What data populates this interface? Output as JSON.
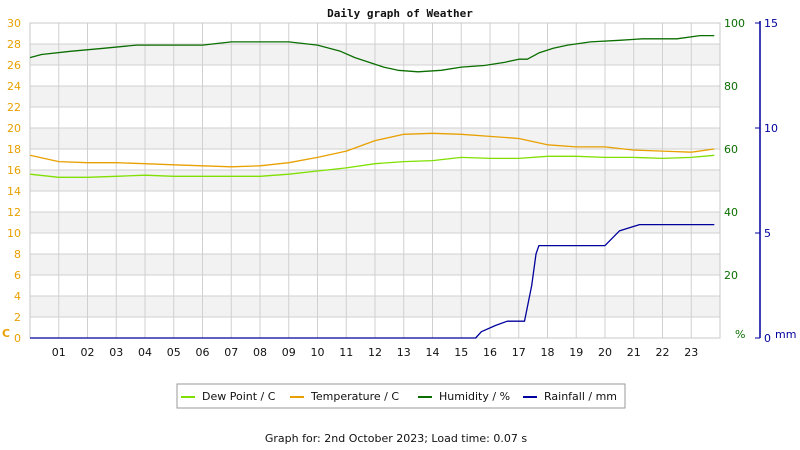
{
  "chart_data": {
    "type": "line",
    "title": "Daily graph of Weather",
    "footer": "Graph for: 2nd October 2023; Load time: 0.07 s",
    "colors": {
      "temperature_axis": "#e8a000",
      "humidity_axis": "#0a6e00",
      "rainfall_axis": "#00009c",
      "band": "#f2f2f2",
      "grid": "#d0d0d0"
    },
    "axes": {
      "x": {
        "ticks": [
          "01",
          "02",
          "03",
          "04",
          "05",
          "06",
          "07",
          "08",
          "09",
          "10",
          "11",
          "12",
          "13",
          "14",
          "15",
          "16",
          "17",
          "18",
          "19",
          "20",
          "21",
          "22",
          "23"
        ],
        "range": [
          0,
          24
        ]
      },
      "temperature": {
        "unit": "C",
        "ylim": [
          0,
          30
        ],
        "ticks": [
          0,
          2,
          4,
          6,
          8,
          10,
          12,
          14,
          16,
          18,
          20,
          22,
          24,
          26,
          28,
          30
        ]
      },
      "humidity": {
        "unit": "%",
        "ylim": [
          0,
          100
        ],
        "ticks": [
          0,
          20,
          40,
          60,
          80,
          100
        ]
      },
      "rainfall": {
        "unit": "mm",
        "ylim": [
          0,
          15
        ],
        "ticks": [
          0,
          5,
          10,
          15
        ]
      }
    },
    "series": [
      {
        "name": "Dew Point / C",
        "axis": "temperature",
        "color": "#7fe000",
        "x": [
          0,
          1,
          2,
          3,
          4,
          5,
          6,
          7,
          8,
          9,
          10,
          11,
          12,
          13,
          14,
          15,
          16,
          17,
          18,
          19,
          20,
          21,
          22,
          23,
          23.8
        ],
        "y": [
          15.6,
          15.3,
          15.3,
          15.4,
          15.5,
          15.4,
          15.4,
          15.4,
          15.4,
          15.6,
          15.9,
          16.2,
          16.6,
          16.8,
          16.9,
          17.2,
          17.1,
          17.1,
          17.3,
          17.3,
          17.2,
          17.2,
          17.1,
          17.2,
          17.4
        ]
      },
      {
        "name": "Temperature / C",
        "axis": "temperature",
        "color": "#e8a000",
        "x": [
          0,
          1,
          2,
          3,
          4,
          5,
          6,
          7,
          8,
          9,
          10,
          11,
          12,
          13,
          14,
          15,
          16,
          17,
          18,
          19,
          20,
          21,
          22,
          23,
          23.8
        ],
        "y": [
          17.4,
          16.8,
          16.7,
          16.7,
          16.6,
          16.5,
          16.4,
          16.3,
          16.4,
          16.7,
          17.2,
          17.8,
          18.8,
          19.4,
          19.5,
          19.4,
          19.2,
          19.0,
          18.4,
          18.2,
          18.2,
          17.9,
          17.8,
          17.7,
          18.0
        ]
      },
      {
        "name": "Humidity / %",
        "axis": "humidity",
        "color": "#0a6e00",
        "x": [
          0,
          0.4,
          1.4,
          2.6,
          3.7,
          5,
          6,
          7,
          8,
          9,
          10,
          10.8,
          11.3,
          11.8,
          12.3,
          12.8,
          13.5,
          14.3,
          15,
          15.8,
          16.5,
          17,
          17.3,
          17.7,
          18.2,
          18.7,
          19.5,
          20.5,
          21.3,
          22.5,
          23.3,
          23.8
        ],
        "y": [
          89,
          90,
          91,
          92,
          93,
          93,
          93,
          94,
          94,
          94,
          93,
          91,
          89,
          87.5,
          86,
          85,
          84.5,
          85,
          86,
          86.5,
          87.5,
          88.5,
          88.5,
          90.5,
          92,
          93,
          94,
          94.5,
          95,
          95,
          96,
          96
        ]
      },
      {
        "name": "Rainfall / mm",
        "axis": "rainfall",
        "color": "#00009c",
        "x": [
          0,
          15.5,
          15.7,
          16.2,
          16.6,
          17.2,
          17.45,
          17.6,
          17.7,
          18.0,
          20.0,
          20.5,
          21.2,
          23.8
        ],
        "y": [
          0,
          0,
          0.3,
          0.6,
          0.8,
          0.8,
          2.5,
          4.0,
          4.4,
          4.4,
          4.4,
          5.1,
          5.4,
          5.4
        ]
      }
    ],
    "legend": {
      "placement": "bottom",
      "entries": [
        "Dew Point / C",
        "Temperature / C",
        "Humidity / %",
        "Rainfall / mm"
      ]
    }
  }
}
